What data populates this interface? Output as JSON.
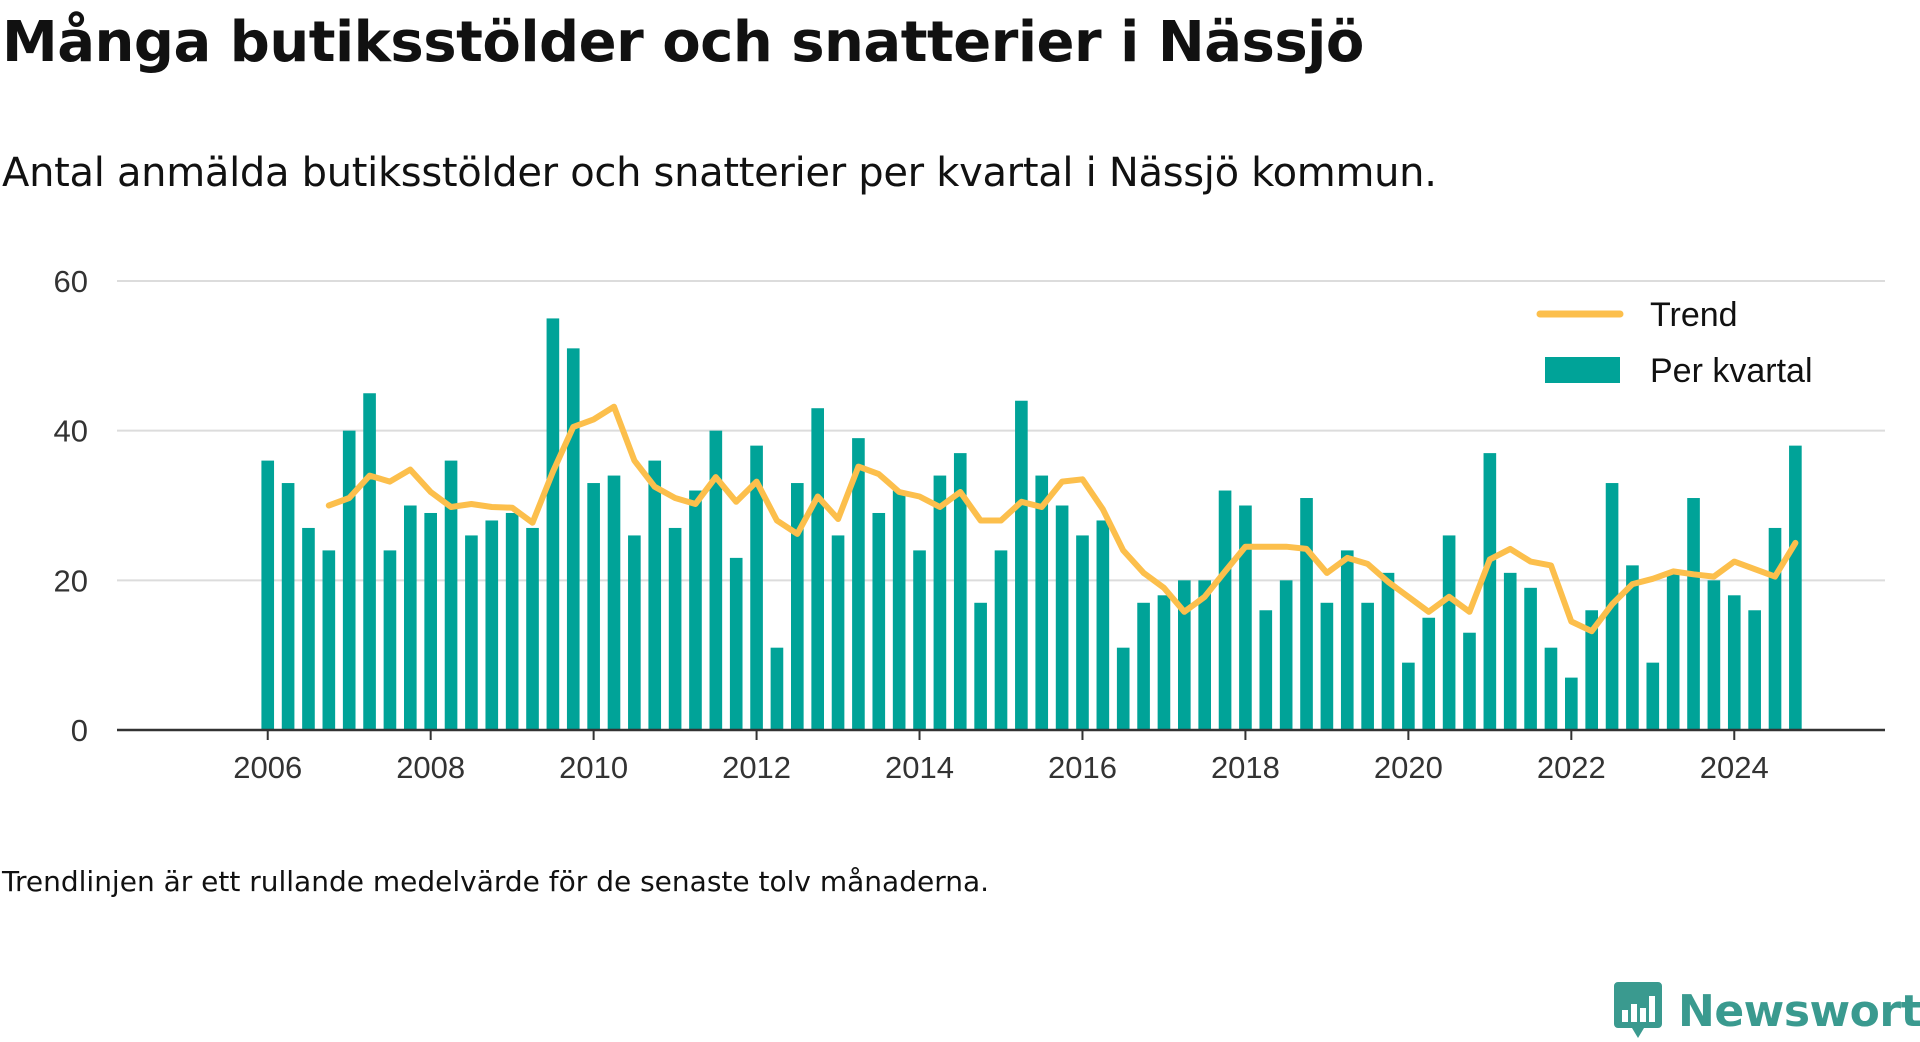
{
  "title": "Många butiksstölder och snatterier i Nässjö",
  "subtitle": "Antal anmälda butiksstölder och snatterier per kvartal i Nässjö kommun.",
  "footnote": "Trendlinjen är ett rullande medelvärde för de senaste tolv månaderna.",
  "brand": {
    "name": "Newsworthy",
    "color": "#3a9a8f",
    "icon": "bar-chart-speech-bubble-icon"
  },
  "colors": {
    "bars": "#00a398",
    "trend": "#fcbf4c",
    "grid": "#dcdcdc",
    "axis": "#333333",
    "text": "#333333"
  },
  "chart_data": {
    "type": "bar",
    "title": "Många butiksstölder och snatterier i Nässjö",
    "xlabel": "",
    "ylabel": "",
    "ylim": [
      0,
      60
    ],
    "yticks": [
      0,
      20,
      40,
      60
    ],
    "xlim": [
      2004.15,
      2025.85
    ],
    "xticks": [
      2006,
      2008,
      2010,
      2012,
      2014,
      2016,
      2018,
      2020,
      2022,
      2024
    ],
    "grid": true,
    "legend_position": "top-right",
    "legend": [
      {
        "label": "Trend",
        "type": "line"
      },
      {
        "label": "Per kvartal",
        "type": "bar"
      }
    ],
    "start_year": 2006,
    "series": [
      {
        "name": "Per kvartal",
        "type": "bar",
        "values": [
          36,
          33,
          27,
          24,
          40,
          45,
          24,
          30,
          29,
          36,
          26,
          28,
          29,
          27,
          55,
          51,
          33,
          34,
          26,
          36,
          27,
          32,
          40,
          23,
          38,
          11,
          33,
          43,
          26,
          39,
          29,
          32,
          24,
          34,
          37,
          17,
          24,
          44,
          34,
          30,
          26,
          28,
          11,
          17,
          18,
          20,
          20,
          32,
          30,
          16,
          20,
          31,
          17,
          24,
          17,
          21,
          9,
          15,
          26,
          13,
          37,
          21,
          19,
          11,
          7,
          16,
          33,
          22,
          9,
          21,
          31,
          20,
          18,
          16,
          27,
          38
        ]
      },
      {
        "name": "Trend",
        "type": "line",
        "values": [
          null,
          null,
          null,
          30,
          31,
          34,
          33.2,
          34.8,
          31.8,
          29.8,
          30.2,
          29.8,
          29.7,
          27.7,
          34.5,
          40.5,
          41.5,
          43.2,
          36,
          32.5,
          31,
          30.2,
          33.8,
          30.5,
          33.2,
          28,
          26.2,
          31.2,
          28.2,
          35.2,
          34.2,
          31.8,
          31.2,
          29.8,
          31.8,
          28,
          28,
          30.5,
          29.8,
          33.2,
          33.5,
          29.5,
          24,
          21,
          19,
          15.8,
          17.8,
          21.2,
          24.5,
          24.5,
          24.5,
          24.2,
          21,
          23,
          22.2,
          19.8,
          17.8,
          15.8,
          17.8,
          15.8,
          22.8,
          24.2,
          22.5,
          22,
          14.5,
          13.2,
          16.8,
          19.5,
          20.2,
          21.2,
          20.8,
          20.5,
          22.5,
          21.5,
          20.5,
          25
        ]
      }
    ]
  }
}
